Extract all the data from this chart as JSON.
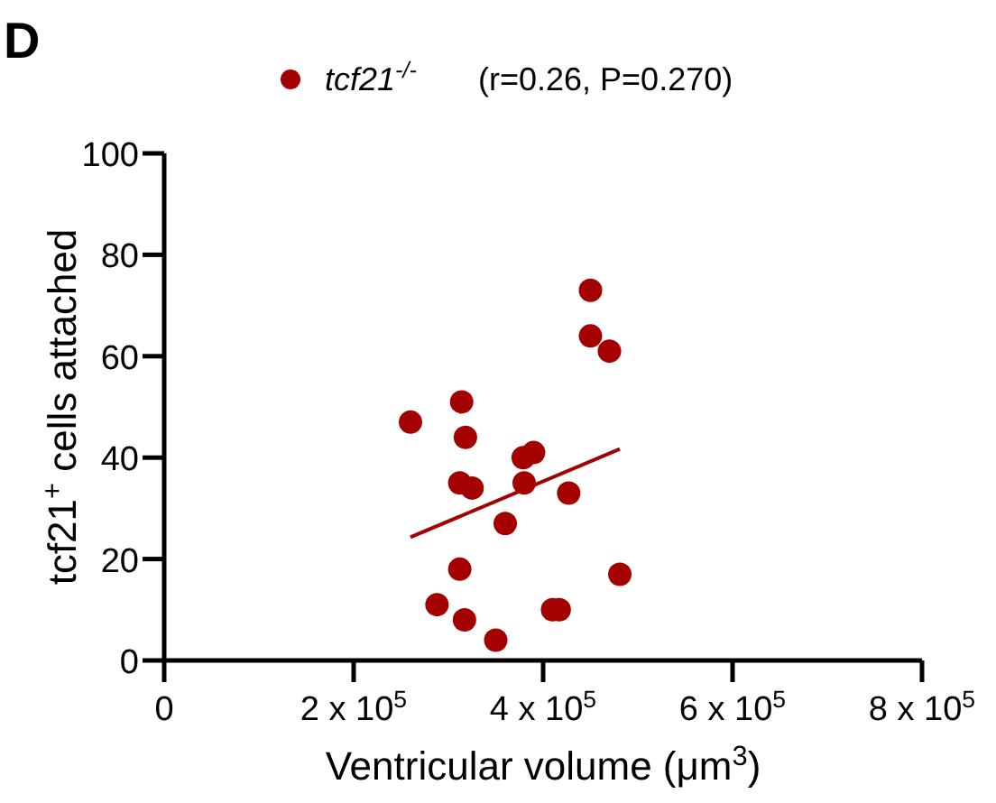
{
  "chart_data": {
    "type": "scatter",
    "xlabel": "Ventricular volume (μm$^{3}$)",
    "ylabel": "tcf21$^{+}$ cells attached",
    "annotations": [
      "D",
      "(r=0.26, P=0.270)"
    ],
    "xlim": [
      0,
      800000
    ],
    "ylim": [
      0,
      100
    ],
    "xticks": [
      0,
      {
        "value": 200000,
        "label": "2 x 10$^{5}$"
      },
      {
        "value": 400000,
        "label": "4 x 10$^{5}$"
      },
      {
        "value": 600000,
        "label": "6 x 10$^{5}$"
      },
      {
        "value": 800000,
        "label": "8 x 10$^{5}$"
      }
    ],
    "yticks": [
      0,
      20,
      40,
      60,
      80,
      100
    ],
    "legend": "top",
    "grid": false,
    "marker": "circle",
    "series": [
      {
        "name": "tcf21$^{-/-}$",
        "color": "#a50000",
        "x": [
          450000,
          450000,
          470000,
          314000,
          260000,
          318000,
          379000,
          390000,
          312000,
          325000,
          380000,
          427000,
          360000,
          312000,
          481000,
          288000,
          317000,
          350000,
          410000,
          417000
        ],
        "values": [
          73,
          64,
          61,
          51,
          47,
          44,
          40,
          41,
          35,
          34,
          35,
          33,
          27,
          18,
          17,
          11,
          8,
          4,
          10,
          10
        ]
      },
      {
        "type": "line",
        "color": "#a50000",
        "marker": "none",
        "x": [
          260000,
          481000
        ],
        "values": [
          24.3,
          41.7
        ]
      }
    ]
  }
}
